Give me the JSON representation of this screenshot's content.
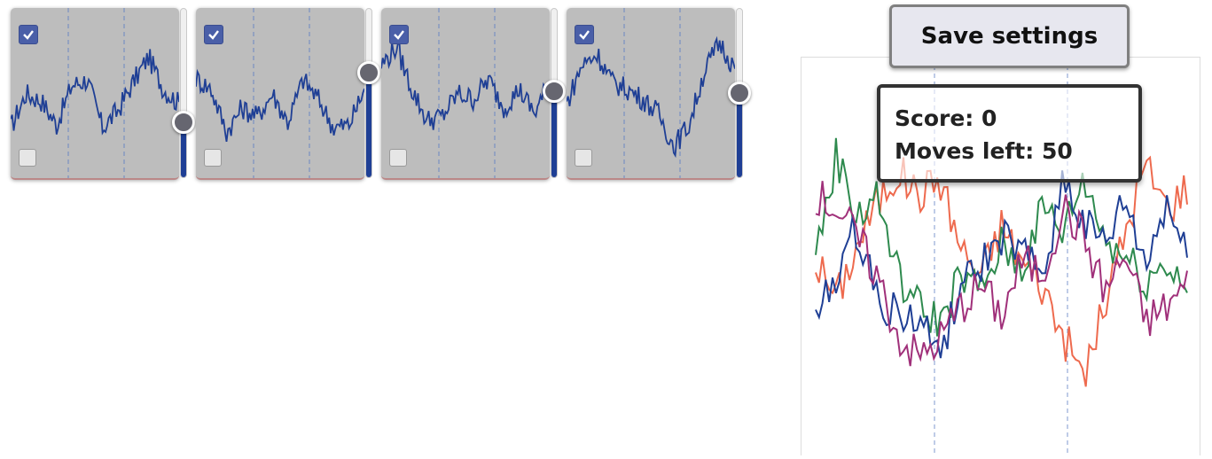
{
  "controls": {
    "save_label": "Save settings"
  },
  "status": {
    "score_text": "Score: 0",
    "moves_text": "Moves left: 50"
  },
  "colors": {
    "tile_bg": "#bdbdbd",
    "checkbox": "#4a5fa8",
    "slider_fill": "#1f3f95",
    "series": [
      "#ee6a4e",
      "#2e8a4e",
      "#1f3f95",
      "#a0307a"
    ]
  },
  "tiles": [
    {
      "top_checked": true,
      "bottom_checked": false,
      "slider_level": 0.33,
      "curve": [
        0.28,
        0.52,
        0.47,
        0.3,
        0.58,
        0.62,
        0.28,
        0.4,
        0.6,
        0.78,
        0.55,
        0.45
      ]
    },
    {
      "top_checked": true,
      "bottom_checked": false,
      "slider_level": 0.62,
      "curve": [
        0.63,
        0.55,
        0.25,
        0.42,
        0.36,
        0.52,
        0.32,
        0.62,
        0.48,
        0.28,
        0.3,
        0.55
      ]
    },
    {
      "top_checked": true,
      "bottom_checked": false,
      "slider_level": 0.51,
      "curve": [
        0.72,
        0.85,
        0.55,
        0.33,
        0.36,
        0.52,
        0.48,
        0.62,
        0.42,
        0.55,
        0.38,
        0.6
      ]
    },
    {
      "top_checked": true,
      "bottom_checked": false,
      "slider_level": 0.5,
      "curve": [
        0.45,
        0.72,
        0.8,
        0.6,
        0.55,
        0.48,
        0.38,
        0.15,
        0.3,
        0.68,
        0.88,
        0.7
      ]
    }
  ],
  "main_series": [
    {
      "color": "#ee6a4e",
      "values": [
        0.5,
        0.38,
        0.55,
        0.7,
        0.8,
        0.72,
        0.78,
        0.55,
        0.45,
        0.62,
        0.5,
        0.42,
        0.25,
        0.12,
        0.35,
        0.6,
        0.82,
        0.68,
        0.75
      ]
    },
    {
      "color": "#2e8a4e",
      "values": [
        0.52,
        0.85,
        0.65,
        0.72,
        0.45,
        0.35,
        0.3,
        0.45,
        0.4,
        0.55,
        0.48,
        0.68,
        0.6,
        0.78,
        0.58,
        0.52,
        0.44,
        0.5,
        0.42
      ]
    },
    {
      "color": "#1f3f95",
      "values": [
        0.3,
        0.45,
        0.62,
        0.38,
        0.32,
        0.3,
        0.2,
        0.4,
        0.48,
        0.58,
        0.52,
        0.45,
        0.78,
        0.62,
        0.55,
        0.7,
        0.48,
        0.7,
        0.5
      ]
    },
    {
      "color": "#a0307a",
      "values": [
        0.72,
        0.68,
        0.58,
        0.45,
        0.25,
        0.18,
        0.24,
        0.35,
        0.42,
        0.32,
        0.5,
        0.46,
        0.68,
        0.58,
        0.4,
        0.52,
        0.3,
        0.35,
        0.42
      ]
    }
  ]
}
